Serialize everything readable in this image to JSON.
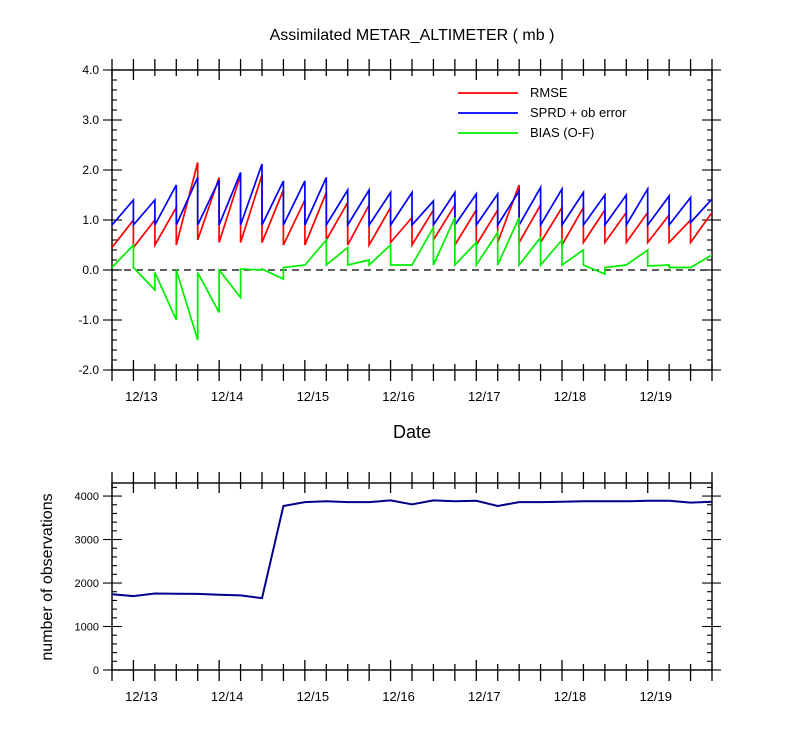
{
  "chart_data": [
    {
      "type": "line",
      "title": "Assimilated METAR_ALTIMETER ( mb )",
      "xlabel": "Date",
      "ylabel": "",
      "ylim": [
        -2.0,
        4.0
      ],
      "yticks": [
        -2.0,
        -1.0,
        0.0,
        1.0,
        2.0,
        3.0,
        4.0
      ],
      "ytick_labels": [
        "-2.0",
        "-1.0",
        "0.0",
        "1.0",
        "2.0",
        "3.0",
        "4.0"
      ],
      "xlim": [
        0.0,
        28.0
      ],
      "xticks": [
        1,
        5,
        9,
        13,
        17,
        21,
        25
      ],
      "xtick_labels": [
        "12/13",
        "12/14",
        "12/15",
        "12/16",
        "12/17",
        "12/18",
        "12/19"
      ],
      "zero_line": "dashed",
      "legend_position": "top-right",
      "series": [
        {
          "name": "RMSE",
          "color": "#ff0000",
          "points": [
            [
              0.0,
              0.45
            ],
            [
              1.0,
              1.0
            ],
            [
              1.0,
              0.45
            ],
            [
              2.0,
              1.0
            ],
            [
              2.0,
              0.5
            ],
            [
              3.0,
              1.25
            ],
            [
              3.0,
              0.5
            ],
            [
              4.0,
              2.15
            ],
            [
              4.0,
              0.6
            ],
            [
              5.0,
              1.85
            ],
            [
              5.0,
              0.55
            ],
            [
              6.0,
              1.9
            ],
            [
              6.0,
              0.55
            ],
            [
              7.0,
              1.9
            ],
            [
              7.0,
              0.55
            ],
            [
              8.0,
              1.6
            ],
            [
              8.0,
              0.5
            ],
            [
              9.0,
              1.4
            ],
            [
              9.0,
              0.5
            ],
            [
              10.0,
              1.55
            ],
            [
              10.0,
              0.6
            ],
            [
              11.0,
              1.35
            ],
            [
              11.0,
              0.5
            ],
            [
              12.0,
              1.3
            ],
            [
              12.0,
              0.5
            ],
            [
              13.0,
              1.25
            ],
            [
              13.0,
              0.55
            ],
            [
              14.0,
              1.05
            ],
            [
              14.0,
              0.5
            ],
            [
              15.0,
              1.2
            ],
            [
              15.0,
              0.6
            ],
            [
              16.0,
              1.3
            ],
            [
              16.0,
              0.5
            ],
            [
              17.0,
              1.2
            ],
            [
              17.0,
              0.5
            ],
            [
              18.0,
              1.2
            ],
            [
              18.0,
              0.55
            ],
            [
              19.0,
              1.7
            ],
            [
              19.0,
              0.55
            ],
            [
              20.0,
              1.3
            ],
            [
              20.0,
              0.55
            ],
            [
              21.0,
              1.25
            ],
            [
              21.0,
              0.5
            ],
            [
              22.0,
              1.25
            ],
            [
              22.0,
              0.55
            ],
            [
              23.0,
              1.2
            ],
            [
              23.0,
              0.55
            ],
            [
              24.0,
              1.15
            ],
            [
              24.0,
              0.55
            ],
            [
              25.0,
              1.15
            ],
            [
              25.0,
              0.55
            ],
            [
              26.0,
              1.1
            ],
            [
              26.0,
              0.55
            ],
            [
              27.0,
              1.0
            ],
            [
              27.0,
              0.55
            ],
            [
              28.0,
              1.15
            ]
          ]
        },
        {
          "name": "SPRD + ob error",
          "color": "#0000ff",
          "points": [
            [
              0.0,
              0.9
            ],
            [
              1.0,
              1.4
            ],
            [
              1.0,
              0.9
            ],
            [
              2.0,
              1.4
            ],
            [
              2.0,
              0.9
            ],
            [
              3.0,
              1.7
            ],
            [
              3.0,
              0.9
            ],
            [
              4.0,
              1.85
            ],
            [
              4.0,
              0.9
            ],
            [
              5.0,
              1.8
            ],
            [
              5.0,
              0.9
            ],
            [
              6.0,
              1.95
            ],
            [
              6.0,
              0.9
            ],
            [
              7.0,
              2.12
            ],
            [
              7.0,
              0.9
            ],
            [
              8.0,
              1.78
            ],
            [
              8.0,
              0.9
            ],
            [
              9.0,
              1.78
            ],
            [
              9.0,
              0.9
            ],
            [
              10.0,
              1.85
            ],
            [
              10.0,
              0.9
            ],
            [
              11.0,
              1.6
            ],
            [
              11.0,
              0.9
            ],
            [
              12.0,
              1.6
            ],
            [
              12.0,
              0.9
            ],
            [
              13.0,
              1.55
            ],
            [
              13.0,
              0.9
            ],
            [
              14.0,
              1.55
            ],
            [
              14.0,
              0.9
            ],
            [
              15.0,
              1.38
            ],
            [
              15.0,
              0.9
            ],
            [
              16.0,
              1.55
            ],
            [
              16.0,
              0.9
            ],
            [
              17.0,
              1.52
            ],
            [
              17.0,
              0.9
            ],
            [
              18.0,
              1.52
            ],
            [
              18.0,
              0.9
            ],
            [
              19.0,
              1.58
            ],
            [
              19.0,
              0.9
            ],
            [
              20.0,
              1.65
            ],
            [
              20.0,
              0.9
            ],
            [
              21.0,
              1.62
            ],
            [
              21.0,
              0.9
            ],
            [
              22.0,
              1.55
            ],
            [
              22.0,
              0.9
            ],
            [
              23.0,
              1.5
            ],
            [
              23.0,
              0.9
            ],
            [
              24.0,
              1.5
            ],
            [
              24.0,
              0.9
            ],
            [
              25.0,
              1.62
            ],
            [
              25.0,
              0.9
            ],
            [
              26.0,
              1.48
            ],
            [
              26.0,
              0.9
            ],
            [
              27.0,
              1.45
            ],
            [
              27.0,
              0.95
            ],
            [
              28.0,
              1.42
            ]
          ]
        },
        {
          "name": "BIAS (O-F)",
          "color": "#00ee00",
          "points": [
            [
              0.0,
              0.05
            ],
            [
              1.0,
              0.5
            ],
            [
              1.0,
              0.05
            ],
            [
              2.0,
              -0.4
            ],
            [
              2.0,
              -0.05
            ],
            [
              3.0,
              -1.0
            ],
            [
              3.0,
              0.0
            ],
            [
              4.0,
              -1.4
            ],
            [
              4.0,
              -0.05
            ],
            [
              5.0,
              -0.85
            ],
            [
              5.0,
              0.0
            ],
            [
              6.0,
              -0.55
            ],
            [
              6.0,
              0.02
            ],
            [
              7.0,
              0.0
            ],
            [
              7.0,
              0.02
            ],
            [
              8.0,
              -0.18
            ],
            [
              8.0,
              0.05
            ],
            [
              9.0,
              0.1
            ],
            [
              9.0,
              0.1
            ],
            [
              10.0,
              0.6
            ],
            [
              10.0,
              0.1
            ],
            [
              11.0,
              0.45
            ],
            [
              11.0,
              0.1
            ],
            [
              12.0,
              0.2
            ],
            [
              12.0,
              0.1
            ],
            [
              13.0,
              0.5
            ],
            [
              13.0,
              0.1
            ],
            [
              14.0,
              0.1
            ],
            [
              14.0,
              0.1
            ],
            [
              15.0,
              0.85
            ],
            [
              15.0,
              0.1
            ],
            [
              16.0,
              1.05
            ],
            [
              16.0,
              0.1
            ],
            [
              17.0,
              0.55
            ],
            [
              17.0,
              0.1
            ],
            [
              18.0,
              0.75
            ],
            [
              18.0,
              0.1
            ],
            [
              19.0,
              1.05
            ],
            [
              19.0,
              0.1
            ],
            [
              20.0,
              0.65
            ],
            [
              20.0,
              0.1
            ],
            [
              21.0,
              0.6
            ],
            [
              21.0,
              0.1
            ],
            [
              22.0,
              0.4
            ],
            [
              22.0,
              0.1
            ],
            [
              23.0,
              -0.08
            ],
            [
              23.0,
              0.05
            ],
            [
              24.0,
              0.1
            ],
            [
              24.0,
              0.1
            ],
            [
              25.0,
              0.4
            ],
            [
              25.0,
              0.08
            ],
            [
              26.0,
              0.1
            ],
            [
              26.0,
              0.05
            ],
            [
              27.0,
              0.05
            ],
            [
              27.0,
              0.05
            ],
            [
              28.0,
              0.3
            ]
          ]
        }
      ]
    },
    {
      "type": "line",
      "title": "",
      "xlabel": "",
      "ylabel": "number of observations",
      "ylim": [
        0,
        4300
      ],
      "yticks": [
        0,
        1000,
        2000,
        3000,
        4000
      ],
      "ytick_labels": [
        "0",
        "1000",
        "2000",
        "3000",
        "4000"
      ],
      "xlim": [
        0.0,
        28.0
      ],
      "xticks": [
        1,
        5,
        9,
        13,
        17,
        21,
        25
      ],
      "xtick_labels": [
        "12/13",
        "12/14",
        "12/15",
        "12/16",
        "12/17",
        "12/18",
        "12/19"
      ],
      "series": [
        {
          "color": "#00008b",
          "x": [
            0,
            1,
            2,
            3,
            4,
            5,
            6,
            7,
            8,
            9,
            10,
            11,
            12,
            13,
            14,
            15,
            16,
            17,
            18,
            19,
            20,
            21,
            22,
            23,
            24,
            25,
            26,
            27,
            28
          ],
          "values": [
            1740,
            1700,
            1760,
            1755,
            1750,
            1730,
            1715,
            1650,
            3770,
            3860,
            3880,
            3860,
            3860,
            3900,
            3810,
            3900,
            3880,
            3890,
            3770,
            3860,
            3860,
            3870,
            3880,
            3880,
            3880,
            3890,
            3890,
            3850,
            3870
          ]
        }
      ]
    }
  ]
}
